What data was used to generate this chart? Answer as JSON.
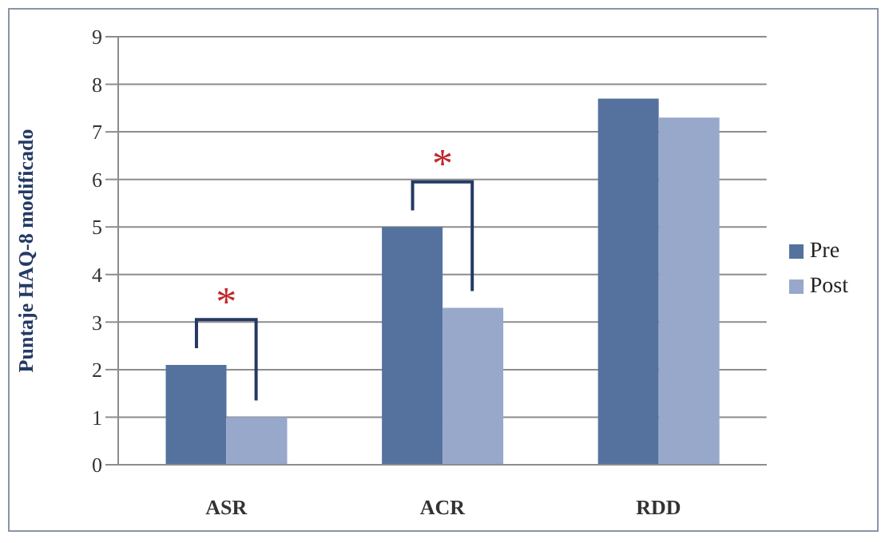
{
  "chart_data": {
    "type": "bar",
    "ylabel": "Puntaje HAQ-8 modificado",
    "categories": [
      "ASR",
      "ACR",
      "RDD"
    ],
    "series": [
      {
        "name": "Pre",
        "color": "#55729f",
        "values": [
          2.1,
          5.0,
          7.7
        ]
      },
      {
        "name": "Post",
        "color": "#98a8cb",
        "values": [
          1.0,
          3.3,
          7.3
        ]
      }
    ],
    "ylim": [
      0,
      9
    ],
    "yticks": [
      0,
      1,
      2,
      3,
      4,
      5,
      6,
      7,
      8,
      9
    ],
    "grid": "y",
    "legend": "right",
    "annotations": [
      "*",
      "*"
    ]
  }
}
